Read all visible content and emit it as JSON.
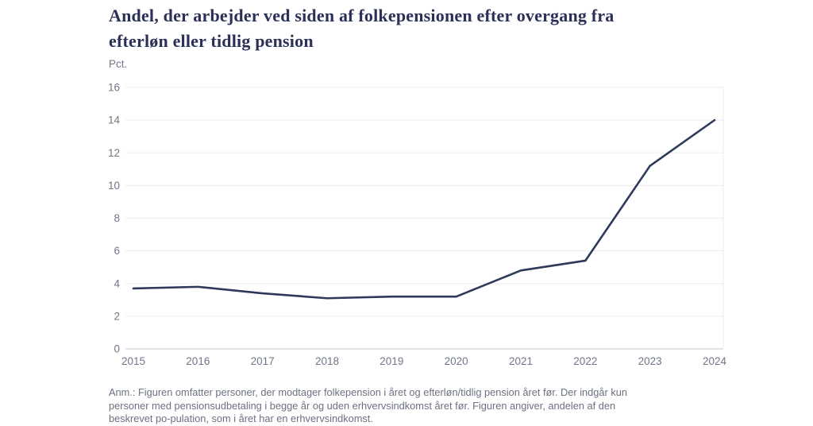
{
  "page": {
    "title_lines": [
      "Andel, der arbejder ved siden af folkepensionen efter overgang fra",
      "efterløn eller tidlig pension"
    ],
    "unit_label": "Pct.",
    "footnote_lines": [
      "Anm.: Figuren omfatter personer, der modtager folkepension i året og efterløn/tidlig pension året før. Der indgår kun",
      "personer med pensionsudbetaling i begge år og uden erhvervsindkomst året før. Figuren angiver, andelen af den",
      "beskrevet po-pulation, som i året har en erhvervsindkomst."
    ]
  },
  "colors": {
    "title": "#2a3057",
    "line": "#2e3a59",
    "grid": "#ededef",
    "axis": "#c7c8cd",
    "tick_text": "#717788",
    "footnote_text": "#6b7180"
  },
  "chart_data": {
    "type": "line",
    "title": "Andel, der arbejder ved siden af folkepensionen efter overgang fra efterløn eller tidlig pension",
    "ylabel": "Pct.",
    "xlabel": "",
    "x": [
      "2015",
      "2016",
      "2017",
      "2018",
      "2019",
      "2020",
      "2021",
      "2022",
      "2023",
      "2024"
    ],
    "values": [
      3.7,
      3.8,
      3.4,
      3.1,
      3.2,
      3.2,
      4.8,
      5.4,
      11.2,
      14.0
    ],
    "ylim": [
      0,
      16
    ],
    "ytick_step": 2,
    "grid": true,
    "legend": "none",
    "line_color": "#2e3a59"
  }
}
